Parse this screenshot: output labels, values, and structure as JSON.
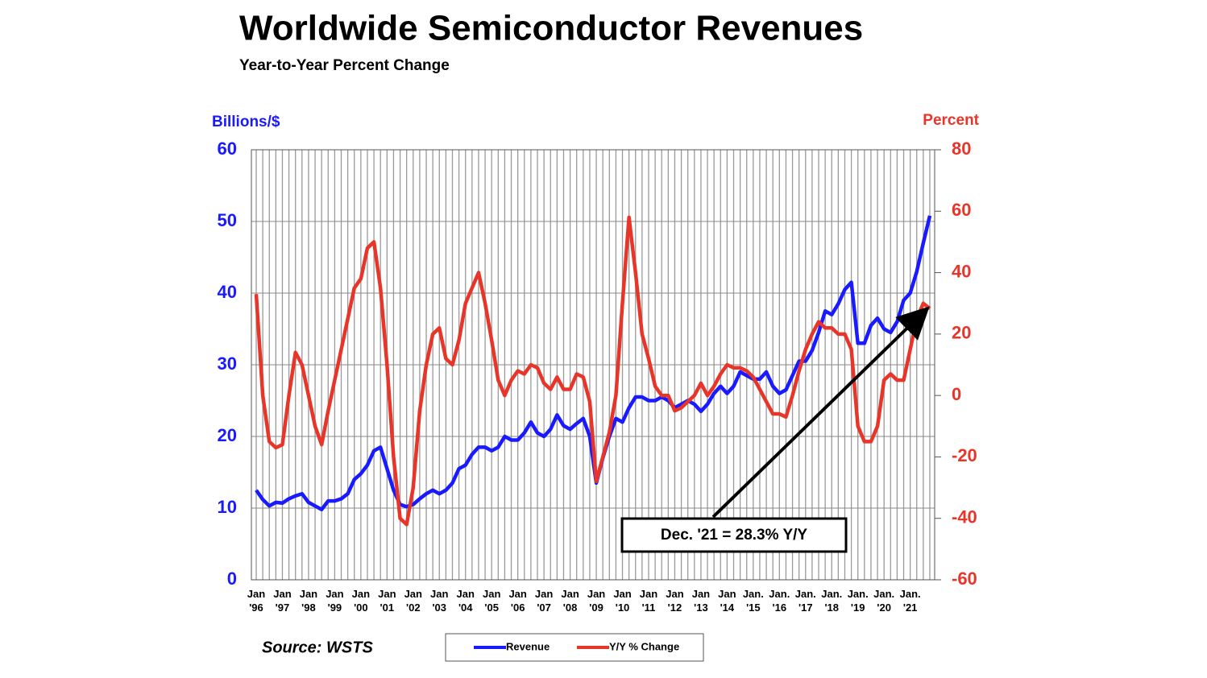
{
  "chart_data": {
    "type": "line",
    "title": "Worldwide Semiconductor Revenues",
    "subtitle": "Year-to-Year Percent Change",
    "y_label": "Billions/$",
    "y2_label": "Percent",
    "source": "Source: WSTS",
    "annotation": "Dec. '21 = 28.3% Y/Y",
    "categories": [
      "Jan\n'96",
      null,
      null,
      null,
      "Jan\n'97",
      null,
      null,
      null,
      "Jan\n'98",
      null,
      null,
      null,
      "Jan\n'99",
      null,
      null,
      null,
      "Jan\n'00",
      null,
      null,
      null,
      "Jan\n'01",
      null,
      null,
      null,
      "Jan\n'02",
      null,
      null,
      null,
      "Jan\n'03",
      null,
      null,
      null,
      "Jan\n'04",
      null,
      null,
      null,
      "Jan\n'05",
      null,
      null,
      null,
      "Jan\n'06",
      null,
      null,
      null,
      "Jan\n'07",
      null,
      null,
      null,
      "Jan\n'08",
      null,
      null,
      null,
      "Jan\n'09",
      null,
      null,
      null,
      "Jan\n'10",
      null,
      null,
      null,
      "Jan\n'11",
      null,
      null,
      null,
      "Jan\n'12",
      null,
      null,
      null,
      "Jan\n'13",
      null,
      null,
      null,
      "Jan\n'14",
      null,
      null,
      null,
      "Jan.\n'15",
      null,
      null,
      null,
      "Jan.\n'16",
      null,
      null,
      null,
      "Jan.\n'17",
      null,
      null,
      null,
      "Jan.\n'18",
      null,
      null,
      null,
      "Jan.\n'19",
      null,
      null,
      null,
      "Jan.\n'20",
      null,
      null,
      null,
      "Jan.\n'21",
      null,
      null,
      null
    ],
    "series": [
      {
        "name": "Revenue",
        "color": "#1a1aff",
        "axis": "y",
        "values": [
          12.5,
          11.2,
          10.3,
          10.8,
          10.7,
          11.3,
          11.7,
          12.0,
          10.8,
          10.3,
          9.8,
          11.0,
          11.0,
          11.3,
          12.0,
          14.0,
          14.8,
          16.0,
          18.0,
          18.5,
          15.5,
          12.5,
          10.5,
          10.2,
          10.5,
          11.3,
          12.0,
          12.5,
          12.0,
          12.5,
          13.5,
          15.5,
          16.0,
          17.5,
          18.5,
          18.5,
          18.0,
          18.5,
          20.0,
          19.5,
          19.5,
          20.5,
          22.0,
          20.5,
          20.0,
          21.0,
          23.0,
          21.5,
          21.0,
          21.8,
          22.5,
          20.0,
          13.5,
          17.0,
          20.0,
          22.5,
          22.0,
          24.0,
          25.5,
          25.5,
          25.0,
          25.0,
          25.5,
          25.0,
          24.0,
          24.5,
          25.0,
          24.5,
          23.5,
          24.5,
          26.0,
          27.0,
          26.0,
          27.0,
          29.0,
          28.5,
          28.0,
          28.0,
          29.0,
          27.0,
          26.0,
          26.5,
          28.5,
          30.5,
          30.5,
          32.0,
          34.5,
          37.5,
          37.0,
          38.5,
          40.5,
          41.5,
          33.0,
          33.0,
          35.5,
          36.5,
          35.0,
          34.5,
          36.0,
          39.0,
          40.0,
          43.0,
          47.0,
          50.8
        ]
      },
      {
        "name": "Y/Y % Change",
        "color": "#e8352a",
        "axis": "y2",
        "values": [
          33,
          0,
          -15,
          -17,
          -16,
          0,
          14,
          10,
          0,
          -10,
          -16,
          -5,
          5,
          15,
          25,
          35,
          38,
          48,
          50,
          35,
          10,
          -20,
          -40,
          -42,
          -30,
          -5,
          10,
          20,
          22,
          12,
          10,
          18,
          30,
          35,
          40,
          30,
          18,
          5,
          0,
          5,
          8,
          7,
          10,
          9,
          4,
          2,
          6,
          2,
          2,
          7,
          6,
          -2,
          -28,
          -20,
          -12,
          0,
          30,
          58,
          40,
          20,
          12,
          3,
          0,
          0,
          -5,
          -4,
          -2,
          0,
          4,
          0,
          3,
          7,
          10,
          9,
          9,
          8,
          6,
          2,
          -2,
          -6,
          -6,
          -7,
          0,
          8,
          15,
          20,
          24,
          22,
          22,
          20,
          20,
          15,
          -10,
          -15,
          -15,
          -10,
          5,
          7,
          5,
          5,
          15,
          25,
          30,
          28.3
        ]
      }
    ],
    "ylim": [
      0,
      60
    ],
    "yticks": [
      0,
      10,
      20,
      30,
      40,
      50,
      60
    ],
    "y2lim": [
      -60,
      80
    ],
    "y2ticks": [
      -60,
      -40,
      -20,
      0,
      20,
      40,
      60,
      80
    ],
    "grid": true
  }
}
